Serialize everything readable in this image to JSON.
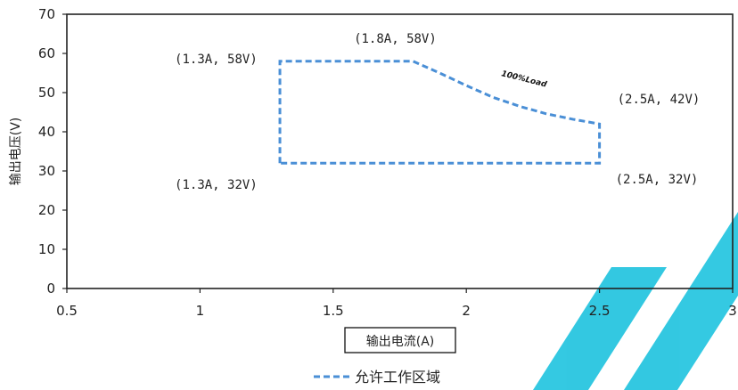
{
  "chart_data": {
    "type": "line",
    "xlabel": "输出电流(A)",
    "ylabel": "输出电压(V)",
    "xlim": [
      0.5,
      3
    ],
    "ylim": [
      0,
      70
    ],
    "x_ticks": [
      "0.5",
      "1",
      "1.5",
      "2",
      "2.5",
      "3"
    ],
    "x_tick_values": [
      0.5,
      1,
      1.5,
      2,
      2.5,
      3
    ],
    "y_ticks": [
      "0",
      "10",
      "20",
      "30",
      "40",
      "50",
      "60",
      "70"
    ],
    "y_tick_values": [
      0,
      10,
      20,
      30,
      40,
      50,
      60,
      70
    ],
    "grid": false,
    "legend_position": "bottom",
    "series": [
      {
        "name": "允许工作区域",
        "style": "dashed",
        "color": "#4a8fd6",
        "points": [
          {
            "x": 1.3,
            "y": 32
          },
          {
            "x": 1.3,
            "y": 58
          },
          {
            "x": 1.8,
            "y": 58
          },
          {
            "x": 1.9,
            "y": 55
          },
          {
            "x": 2.0,
            "y": 51.8
          },
          {
            "x": 2.1,
            "y": 48.8
          },
          {
            "x": 2.2,
            "y": 46.5
          },
          {
            "x": 2.3,
            "y": 44.6
          },
          {
            "x": 2.4,
            "y": 43.2
          },
          {
            "x": 2.5,
            "y": 42
          },
          {
            "x": 2.5,
            "y": 32
          },
          {
            "x": 1.3,
            "y": 32
          }
        ]
      }
    ],
    "annotations": [
      {
        "text": "(1.3A, 58V)",
        "x": 1.3,
        "y": 58
      },
      {
        "text": "(1.8A, 58V)",
        "x": 1.8,
        "y": 58
      },
      {
        "text": "(2.5A, 42V)",
        "x": 2.5,
        "y": 42
      },
      {
        "text": "(1.3A, 32V)",
        "x": 1.3,
        "y": 32
      },
      {
        "text": "(2.5A, 32V)",
        "x": 2.5,
        "y": 32
      }
    ],
    "curve_label": "100%Load"
  },
  "colors": {
    "series_line": "#4a8fd6",
    "axis": "#222222",
    "watermark": "#29c6e0"
  }
}
